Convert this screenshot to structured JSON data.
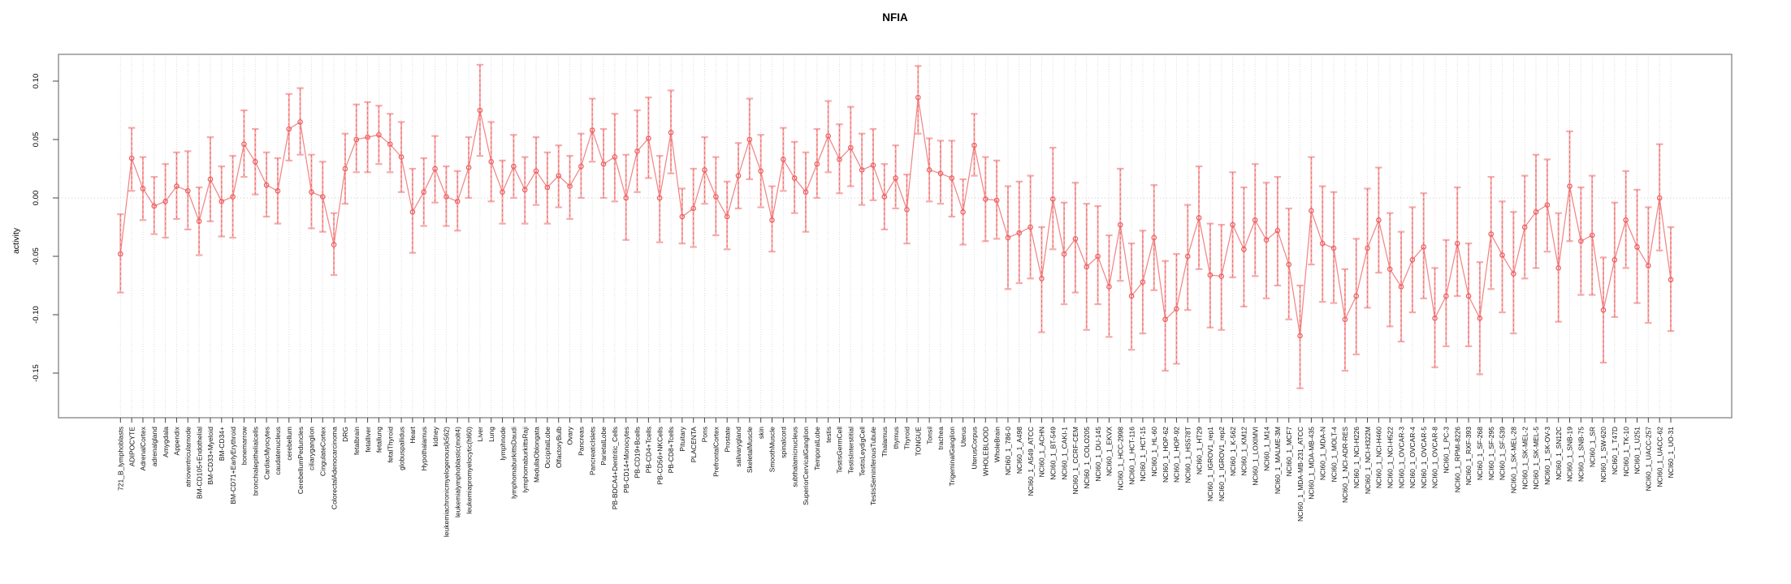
{
  "chart_data": {
    "type": "scatter",
    "title": "NFIA",
    "ylabel": "activity",
    "xlabel": "",
    "ylim": [
      -0.188,
      0.123
    ],
    "y_tick_labels": [
      "0.10",
      "0.05",
      "0.00",
      "-0.05",
      "-0.10",
      "-0.15"
    ],
    "grid": "vertical dotted gridline per category, dotted horizontal line at 0.00, full gray plot box",
    "legend": "none",
    "marker": "open-circle",
    "series_color": "#ee5c5c",
    "line_color": "#ef7474",
    "ci_color": "#f5abab",
    "grid_color": "#dcdcdc",
    "box_color": "#8c8c8c",
    "categories": [
      "721_B_lymphoblasts",
      "ADIPOCYTE",
      "AdrenalCortex",
      "adrenalgland",
      "Amygdala",
      "Appendix",
      "atrioventricularnode",
      "BM-CD105+Endothelial",
      "BM-CD33+Myeloid",
      "BM-CD34+",
      "BM-CD71+EarlyErythroid",
      "bonemarrow",
      "bronchialepithelialcells",
      "CardiacMyocytes",
      "caudatenucleus",
      "cerebellum",
      "CerebellumPeduncles",
      "ciliaryganglion",
      "CingulateCortex",
      "ColorectalAdenocarcinoma",
      "DRG",
      "fetalbrain",
      "fetalliver",
      "fetallung",
      "fetalThyroid",
      "globuspallidus",
      "Heart",
      "Hypothalamus",
      "kidney",
      "leukemiachronicmyelogenous(k562)",
      "leukemialymphoblastic(molt4)",
      "leukemiapromyelocytic(hl60)",
      "Liver",
      "Lung",
      "lymphnode",
      "lymphomaburkittsDaudi",
      "lymphomaburkittsRaji",
      "MedullaOblongata",
      "OccipitalLobe",
      "OlfactoryBulb",
      "Ovary",
      "Pancreas",
      "PancreaticIslets",
      "ParietalLobe",
      "PB-BDCA4+Dentritic_Cells",
      "PB-CD14+Monocytes",
      "PB-CD19+Bcells",
      "PB-CD4+Tcells",
      "PB-CD56+NKCells",
      "PB-CD8+Tcells",
      "Pituitary",
      "PLACENTA",
      "Pons",
      "PrefrontalCortex",
      "Prostate",
      "salivarygland",
      "SkeletalMuscle",
      "skin",
      "SmoothMuscle",
      "spinalcord",
      "subthalamicnucleus",
      "SuperiorCervicalGanglion",
      "TemporalLobe",
      "testis",
      "TestisGermCell",
      "TestisInterstitial",
      "TestisLeydigCell",
      "TestisSeminiferousTubule",
      "Thalamus",
      "thymus",
      "Thyroid",
      "TONGUE",
      "Tonsil",
      "trachea",
      "TrigeminalGanglion",
      "Uterus",
      "UterusCorpus",
      "WHOLEBLOOD",
      "WholeBrain",
      "NCI60_1_786-0",
      "NCI60_1_A498",
      "NCI60_1_A549_ATCC",
      "NCI60_1_ACHN",
      "NCI60_1_BT-549",
      "NCI60_1_CAKI-1",
      "NCI60_1_CCRF-CEM",
      "NCI60_1_COLO205",
      "NCI60_1_DU-145",
      "NCI60_1_EKVX",
      "NCI60_1_HCC-2998",
      "NCI60_1_HCT-116",
      "NCI60_1_HCT-15",
      "NCI60_1_HL-60",
      "NCI60_1_HOP-62",
      "NCI60_1_HOP-92",
      "NCI60_1_HS578T",
      "NCI60_1_HT29",
      "NCI60_1_IGROV1_rep1",
      "NCI60_1_IGROV1_rep2",
      "NCI60_1_K-562",
      "NCI60_1_KM12",
      "NCI60_1_LOXIMVI",
      "NCI60_1_M14",
      "NCI60_1_MALME-3M",
      "NCI60_1_MCF7",
      "NCI60_1_MDA-MB-231_ATCC",
      "NCI60_1_MDA-MB-435",
      "NCI60_1_MDA-N",
      "NCI60_1_MOLT-4",
      "NCI60_1_NCI-ADR-RES",
      "NCI60_1_NCI-H226",
      "NCI60_1_NCI-H322M",
      "NCI60_1_NCI-H460",
      "NCI60_1_NCI-H522",
      "NCI60_1_OVCAR-3",
      "NCI60_1_OVCAR-4",
      "NCI60_1_OVCAR-5",
      "NCI60_1_OVCAR-8",
      "NCI60_1_PC-3",
      "NCI60_1_RPMI-8226",
      "NCI60_1_RXF-393",
      "NCI60_1_SF-268",
      "NCI60_1_SF-295",
      "NCI60_1_SF-539",
      "NCI60_1_SK-MEL-28",
      "NCI60_1_SK-MEL-2",
      "NCI60_1_SK-MEL-5",
      "NCI60_1_SK-OV-3",
      "NCI60_1_SN12C",
      "NCI60_1_SNB-19",
      "NCI60_1_SNB-75",
      "NCI60_1_SR",
      "NCI60_1_SW-620",
      "NCI60_1_T47D",
      "NCI60_1_TK-10",
      "NCI60_1_U251",
      "NCI60_1_UACC-257",
      "NCI60_1_UACC-62",
      "NCI60_1_UO-31"
    ],
    "values": [
      -0.048,
      0.034,
      0.008,
      -0.007,
      -0.003,
      0.01,
      0.006,
      -0.02,
      0.016,
      -0.003,
      0.001,
      0.046,
      0.031,
      0.011,
      0.006,
      0.059,
      0.065,
      0.005,
      0.001,
      -0.04,
      0.025,
      0.05,
      0.052,
      0.054,
      0.046,
      0.035,
      -0.012,
      0.005,
      0.025,
      0.001,
      -0.003,
      0.026,
      0.075,
      0.031,
      0.005,
      0.027,
      0.007,
      0.023,
      0.009,
      0.019,
      0.01,
      0.027,
      0.058,
      0.029,
      0.035,
      0.0,
      0.04,
      0.051,
      0.0,
      0.056,
      -0.016,
      -0.009,
      0.024,
      0.001,
      -0.016,
      0.019,
      0.05,
      0.023,
      -0.019,
      0.033,
      0.017,
      0.005,
      0.029,
      0.053,
      0.033,
      0.043,
      0.024,
      0.028,
      0.001,
      0.017,
      -0.01,
      0.086,
      0.024,
      0.021,
      0.017,
      -0.012,
      0.045,
      -0.001,
      -0.002,
      -0.034,
      -0.03,
      -0.025,
      -0.069,
      -0.001,
      -0.048,
      -0.035,
      -0.059,
      -0.05,
      -0.076,
      -0.023,
      -0.084,
      -0.072,
      -0.034,
      -0.104,
      -0.095,
      -0.05,
      -0.017,
      -0.066,
      -0.067,
      -0.023,
      -0.044,
      -0.019,
      -0.036,
      -0.028,
      -0.057,
      -0.118,
      -0.011,
      -0.039,
      -0.043,
      -0.104,
      -0.084,
      -0.043,
      -0.019,
      -0.061,
      -0.076,
      -0.053,
      -0.042,
      -0.103,
      -0.084,
      -0.039,
      -0.084,
      -0.103,
      -0.031,
      -0.049,
      -0.065,
      -0.025,
      -0.012,
      -0.006,
      -0.06,
      0.01,
      -0.037,
      -0.032,
      -0.096,
      -0.053,
      -0.019,
      -0.042,
      -0.058,
      0.0,
      -0.07
    ],
    "ci_low": [
      -0.081,
      0.006,
      -0.019,
      -0.031,
      -0.034,
      -0.018,
      -0.027,
      -0.049,
      -0.02,
      -0.033,
      -0.034,
      0.018,
      0.003,
      -0.016,
      -0.022,
      0.032,
      0.037,
      -0.026,
      -0.029,
      -0.066,
      -0.005,
      0.022,
      0.022,
      0.029,
      0.022,
      0.005,
      -0.047,
      -0.024,
      -0.004,
      -0.024,
      -0.028,
      0.0,
      0.036,
      -0.003,
      -0.022,
      0.0,
      -0.022,
      -0.006,
      -0.022,
      -0.008,
      -0.018,
      0.0,
      0.031,
      0.0,
      -0.003,
      -0.036,
      0.005,
      0.017,
      -0.038,
      0.021,
      -0.039,
      -0.042,
      -0.005,
      -0.032,
      -0.044,
      -0.009,
      0.016,
      -0.008,
      -0.046,
      0.006,
      -0.013,
      -0.029,
      0.0,
      0.022,
      0.004,
      0.01,
      -0.006,
      -0.002,
      -0.027,
      -0.009,
      -0.039,
      0.055,
      -0.003,
      -0.005,
      -0.016,
      -0.04,
      0.019,
      -0.037,
      -0.035,
      -0.078,
      -0.073,
      -0.069,
      -0.115,
      -0.044,
      -0.091,
      -0.081,
      -0.113,
      -0.091,
      -0.119,
      -0.071,
      -0.13,
      -0.116,
      -0.079,
      -0.148,
      -0.142,
      -0.096,
      -0.061,
      -0.111,
      -0.113,
      -0.068,
      -0.093,
      -0.067,
      -0.086,
      -0.075,
      -0.104,
      -0.163,
      -0.057,
      -0.089,
      -0.09,
      -0.148,
      -0.134,
      -0.094,
      -0.064,
      -0.11,
      -0.123,
      -0.098,
      -0.086,
      -0.145,
      -0.127,
      -0.084,
      -0.127,
      -0.151,
      -0.078,
      -0.098,
      -0.116,
      -0.069,
      -0.06,
      -0.046,
      -0.106,
      -0.037,
      -0.083,
      -0.083,
      -0.141,
      -0.102,
      -0.06,
      -0.09,
      -0.107,
      -0.045,
      -0.114
    ],
    "ci_high": [
      -0.014,
      0.06,
      0.035,
      0.018,
      0.029,
      0.039,
      0.04,
      0.009,
      0.052,
      0.027,
      0.036,
      0.075,
      0.059,
      0.039,
      0.034,
      0.089,
      0.094,
      0.037,
      0.031,
      -0.013,
      0.055,
      0.08,
      0.082,
      0.079,
      0.072,
      0.065,
      0.025,
      0.034,
      0.053,
      0.027,
      0.023,
      0.052,
      0.114,
      0.065,
      0.032,
      0.054,
      0.035,
      0.052,
      0.039,
      0.045,
      0.036,
      0.055,
      0.085,
      0.059,
      0.072,
      0.037,
      0.075,
      0.086,
      0.036,
      0.092,
      0.008,
      0.025,
      0.052,
      0.035,
      0.014,
      0.047,
      0.085,
      0.054,
      0.01,
      0.06,
      0.048,
      0.039,
      0.059,
      0.083,
      0.063,
      0.078,
      0.055,
      0.059,
      0.029,
      0.045,
      0.02,
      0.113,
      0.051,
      0.049,
      0.049,
      0.016,
      0.072,
      0.035,
      0.032,
      0.01,
      0.014,
      0.019,
      -0.025,
      0.043,
      -0.004,
      0.013,
      -0.005,
      -0.007,
      -0.032,
      0.025,
      -0.039,
      -0.028,
      0.011,
      -0.054,
      -0.048,
      -0.006,
      0.027,
      -0.022,
      -0.023,
      0.022,
      0.009,
      0.029,
      0.013,
      0.018,
      -0.009,
      -0.075,
      0.035,
      0.01,
      0.005,
      -0.061,
      -0.035,
      0.008,
      0.026,
      -0.013,
      -0.029,
      -0.008,
      0.004,
      -0.06,
      -0.036,
      0.009,
      -0.039,
      -0.055,
      0.018,
      -0.003,
      -0.012,
      0.019,
      0.037,
      0.033,
      -0.013,
      0.057,
      0.009,
      0.019,
      -0.051,
      -0.004,
      0.023,
      0.007,
      -0.008,
      0.046,
      -0.025
    ]
  }
}
